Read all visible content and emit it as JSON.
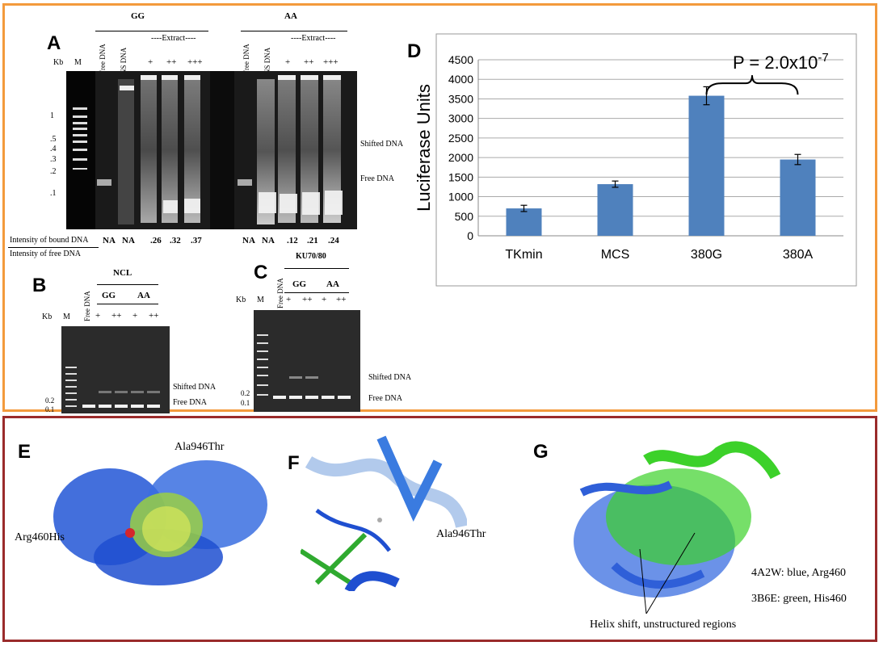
{
  "panelA": {
    "label": "A",
    "group_gg": "GG",
    "group_aa": "AA",
    "kb": "Kb",
    "marker": "M",
    "lane_free": "Free DNA",
    "lane_ns": "NS DNA",
    "extract_header": "----Extract----",
    "plus1": "+",
    "plus2": "++",
    "plus3": "+++",
    "markers": [
      "1",
      ".5",
      ".4",
      ".3",
      ".2",
      ".1"
    ],
    "shifted": "Shifted DNA",
    "free": "Free DNA",
    "ratio_top": "Intensity of bound DNA",
    "ratio_bottom": "Intensity of free DNA",
    "gg_values": [
      "NA",
      "NA",
      ".26",
      ".32",
      ".37"
    ],
    "aa_values": [
      "NA",
      "NA",
      ".12",
      ".21",
      ".24"
    ]
  },
  "panelB": {
    "label": "B",
    "title": "NCL",
    "kb": "Kb",
    "marker": "M",
    "lane_free": "Free DNA",
    "gg": "GG",
    "aa": "AA",
    "plus1": "+",
    "plus2": "++",
    "m1": "0.2",
    "m2": "0.1",
    "shifted": "Shifted DNA",
    "free": "Free DNA"
  },
  "panelC": {
    "label": "C",
    "title": "KU70/80",
    "kb": "Kb",
    "marker": "M",
    "lane_free": "Free DNA",
    "gg": "GG",
    "aa": "AA",
    "plus1": "+",
    "plus2": "++",
    "m1": "0.2",
    "m2": "0.1",
    "shifted": "Shifted DNA",
    "free": "Free DNA"
  },
  "panelD": {
    "label": "D",
    "pvalue_base": "P = 2.0x10",
    "pvalue_exp": "-7"
  },
  "chart_data": {
    "type": "bar",
    "categories": [
      "TKmin",
      "MCS",
      "380G",
      "380A"
    ],
    "values": [
      700,
      1320,
      3580,
      1950
    ],
    "errors": [
      80,
      80,
      230,
      130
    ],
    "ylabel": "Luciferase Units",
    "ylim": [
      0,
      4500
    ],
    "yticks": [
      "0",
      "500",
      "1000",
      "1500",
      "2000",
      "2500",
      "3000",
      "3500",
      "4000",
      "4500"
    ],
    "grid": true,
    "bar_color": "#4f81bd"
  },
  "panelE": {
    "label": "E",
    "mut1": "Ala946Thr",
    "mut2": "Arg460His"
  },
  "panelF": {
    "label": "F",
    "mut": "Ala946Thr"
  },
  "panelG": {
    "label": "G",
    "legend1": "4A2W: blue, Arg460",
    "legend2": "3B6E: green, His460",
    "caption": "Helix shift, unstructured regions"
  }
}
